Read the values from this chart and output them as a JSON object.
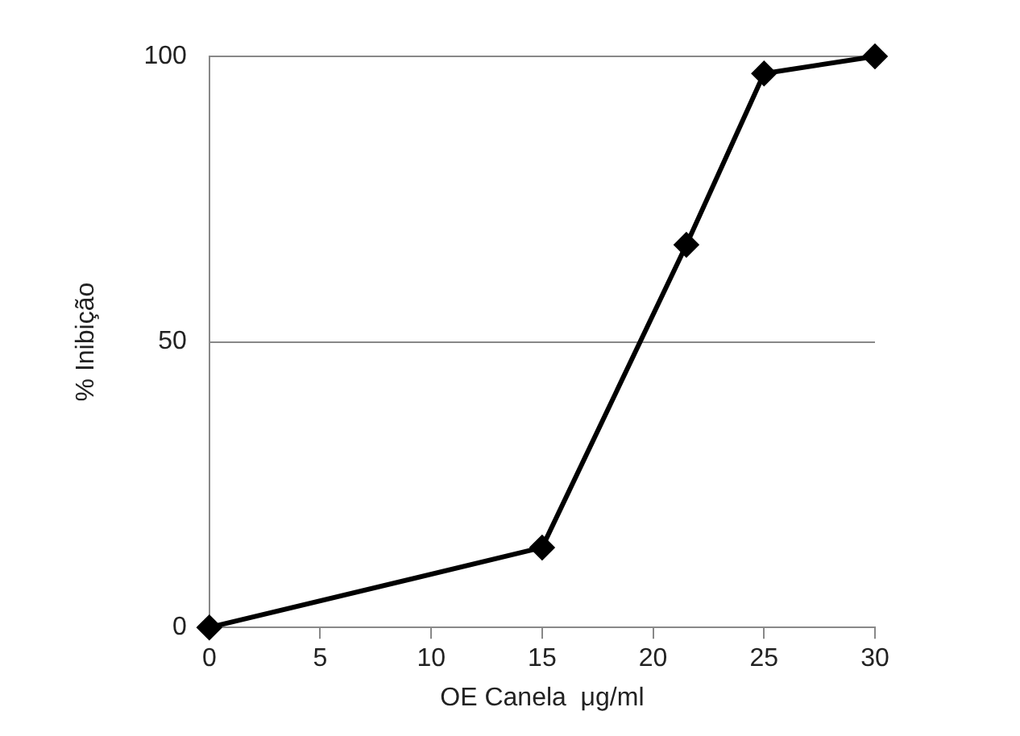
{
  "chart_data": {
    "type": "line",
    "xlabel": "OE Canela  μg/ml",
    "ylabel": "% Inibição",
    "x": [
      0,
      15,
      21.5,
      25,
      30
    ],
    "series": [
      {
        "color": "#000000",
        "values": [
          0,
          14,
          67,
          97,
          100
        ]
      }
    ],
    "xlim": [
      0,
      30
    ],
    "xticks": [
      0,
      5,
      10,
      15,
      20,
      25,
      30
    ],
    "ylim": [
      0,
      100
    ],
    "yticks": [
      0,
      50,
      100
    ],
    "grid": "y",
    "legend": false,
    "marker": "diamond",
    "line_style": "solid"
  }
}
